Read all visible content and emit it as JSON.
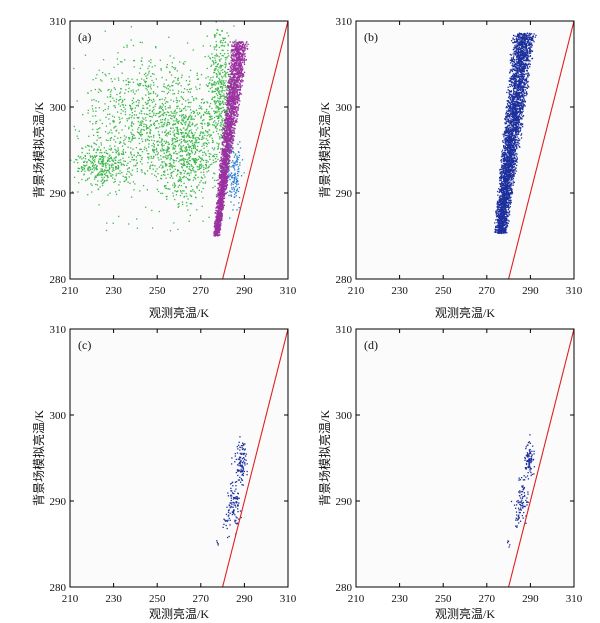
{
  "figure": {
    "background": "#fbfbfb",
    "frame_color": "#000000"
  },
  "chart_data": [
    {
      "panel": "(a)",
      "type": "scatter",
      "xlabel": "观测亮温/K",
      "ylabel": "背景场模拟亮温/K",
      "xlim": [
        210,
        310
      ],
      "ylim": [
        280,
        310
      ],
      "xticks": [
        "210",
        "230",
        "250",
        "270",
        "290",
        "310"
      ],
      "yticks": [
        "280",
        "290",
        "300",
        "310"
      ],
      "reference_line": {
        "from": [
          280,
          280
        ],
        "to": [
          310,
          310
        ],
        "color": "#e02020"
      },
      "series": [
        {
          "color": "#3cb84a",
          "point_count": 2400,
          "clusters": [
            {
              "cx": 244,
              "cy": 298,
              "sx": 14,
              "sy": 4.2,
              "w": 0.38
            },
            {
              "cx": 263,
              "cy": 295,
              "sx": 7,
              "sy": 3,
              "w": 0.27
            },
            {
              "cx": 279,
              "cy": 301.5,
              "sx": 3,
              "sy": 4,
              "w": 0.22
            },
            {
              "cx": 224,
              "cy": 293.2,
              "sx": 6,
              "sy": 1.2,
              "w": 0.13
            }
          ]
        },
        {
          "color": "#9b30a0",
          "point_count": 2600,
          "band": {
            "y_min": 285,
            "y_max": 307.6,
            "x_left_at_ymin": 275.6,
            "x_left_at_ymax": 283.4,
            "x_right_at_ymin": 278.8,
            "x_right_at_ymax": 292.6
          }
        },
        {
          "color": "#2a7fd0",
          "point_count": 130,
          "clusters": [
            {
              "cx": 285.5,
              "cy": 292,
              "sx": 1.4,
              "sy": 1.8,
              "w": 1
            }
          ]
        }
      ]
    },
    {
      "panel": "(b)",
      "type": "scatter",
      "xlabel": "观测亮温/K",
      "ylabel": "背景场模拟亮温/K",
      "xlim": [
        210,
        310
      ],
      "ylim": [
        280,
        310
      ],
      "xticks": [
        "210",
        "230",
        "250",
        "270",
        "290",
        "310"
      ],
      "yticks": [
        "280",
        "290",
        "300",
        "310"
      ],
      "reference_line": {
        "from": [
          280,
          280
        ],
        "to": [
          310,
          310
        ],
        "color": "#e02020"
      },
      "series": [
        {
          "color": "#1c2f9c",
          "point_count": 3400,
          "band": {
            "y_min": 285.3,
            "y_max": 308.6,
            "x_left_at_ymin": 273,
            "x_left_at_ymax": 281.5,
            "x_right_at_ymin": 279.5,
            "x_right_at_ymax": 293
          }
        }
      ]
    },
    {
      "panel": "(c)",
      "type": "scatter",
      "xlabel": "观测亮温/K",
      "ylabel": "背景场模拟亮温/K",
      "xlim": [
        210,
        310
      ],
      "ylim": [
        280,
        310
      ],
      "xticks": [
        "210",
        "230",
        "250",
        "270",
        "290",
        "310"
      ],
      "yticks": [
        "280",
        "290",
        "300",
        "310"
      ],
      "reference_line": {
        "from": [
          280,
          280
        ],
        "to": [
          310,
          310
        ],
        "color": "#e02020"
      },
      "series": [
        {
          "color": "#1c2f9c",
          "point_count": 220,
          "clusters": [
            {
              "cx": 288.6,
              "cy": 294.4,
              "sx": 1.3,
              "sy": 1.1,
              "w": 0.45
            },
            {
              "cx": 285.2,
              "cy": 289.8,
              "sx": 1.6,
              "sy": 1.3,
              "w": 0.42
            },
            {
              "cx": 282.2,
              "cy": 287.6,
              "sx": 0.8,
              "sy": 0.9,
              "w": 0.1
            },
            {
              "cx": 277.8,
              "cy": 285.2,
              "sx": 0.3,
              "sy": 0.3,
              "w": 0.03
            }
          ]
        }
      ]
    },
    {
      "panel": "(d)",
      "type": "scatter",
      "xlabel": "观测亮温/K",
      "ylabel": "背景场模拟亮温/K",
      "xlim": [
        210,
        310
      ],
      "ylim": [
        280,
        310
      ],
      "xticks": [
        "210",
        "230",
        "250",
        "270",
        "290",
        "310"
      ],
      "yticks": [
        "280",
        "290",
        "300",
        "310"
      ],
      "reference_line": {
        "from": [
          280,
          280
        ],
        "to": [
          310,
          310
        ],
        "color": "#e02020"
      },
      "series": [
        {
          "color": "#1c2f9c",
          "point_count": 190,
          "clusters": [
            {
              "cx": 289.6,
              "cy": 294.8,
              "sx": 1.0,
              "sy": 0.9,
              "w": 0.45
            },
            {
              "cx": 286.4,
              "cy": 290.2,
              "sx": 1.4,
              "sy": 1.2,
              "w": 0.42
            },
            {
              "cx": 284.2,
              "cy": 288.2,
              "sx": 0.7,
              "sy": 0.7,
              "w": 0.1
            },
            {
              "cx": 279.8,
              "cy": 285.3,
              "sx": 0.3,
              "sy": 0.3,
              "w": 0.03
            }
          ]
        }
      ]
    }
  ]
}
